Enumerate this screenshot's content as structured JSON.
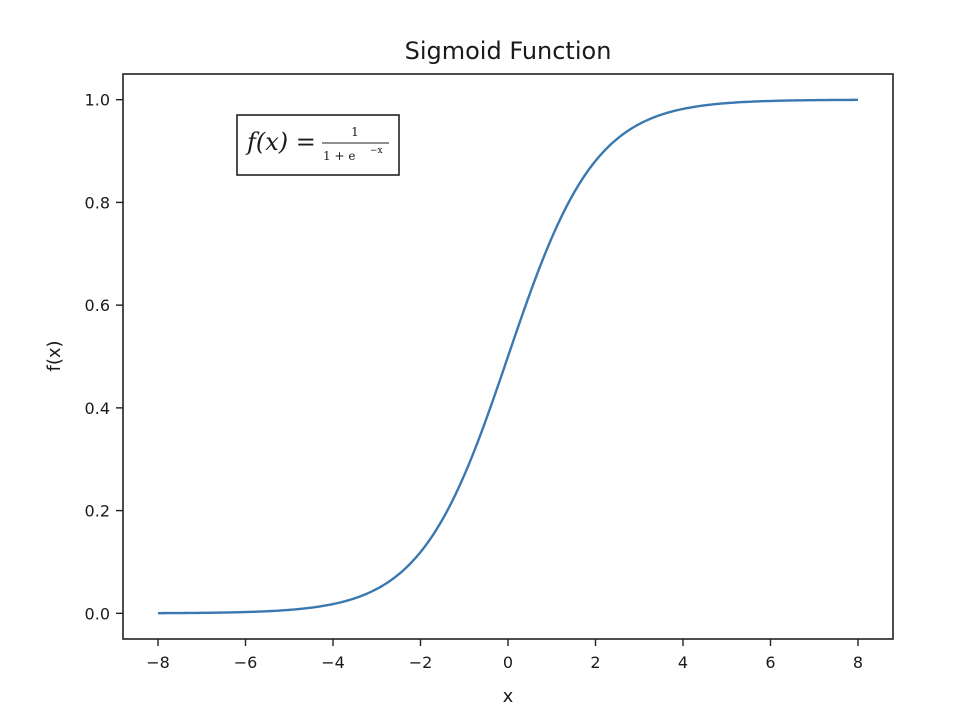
{
  "chart_data": {
    "type": "line",
    "title": "Sigmoid Function",
    "xlabel": "x",
    "ylabel": "f(x)",
    "xlim": [
      -8.8,
      8.8
    ],
    "ylim": [
      -0.05,
      1.05
    ],
    "xticks": [
      -8,
      -6,
      -4,
      -2,
      0,
      2,
      4,
      6,
      8
    ],
    "xtick_labels": [
      "−8",
      "−6",
      "−4",
      "−2",
      "0",
      "2",
      "4",
      "6",
      "8"
    ],
    "yticks": [
      0.0,
      0.2,
      0.4,
      0.6,
      0.8,
      1.0
    ],
    "ytick_labels": [
      "0.0",
      "0.2",
      "0.4",
      "0.6",
      "0.8",
      "1.0"
    ],
    "grid": false,
    "series": [
      {
        "function": "1/(1+exp(-x))",
        "x_range": [
          -8,
          8
        ],
        "color": "#3a78b0"
      }
    ],
    "annotation": {
      "lhs": "f(x) =",
      "numerator": "1",
      "denominator": "1 + e",
      "exponent": "−x",
      "placement": "top-left"
    }
  }
}
